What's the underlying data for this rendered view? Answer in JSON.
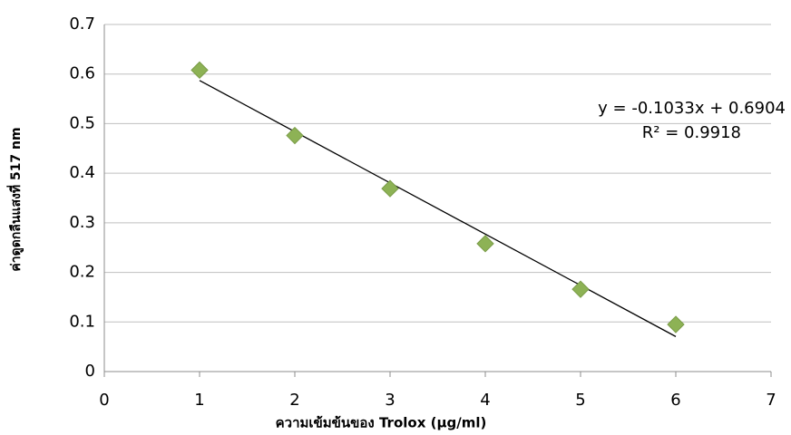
{
  "chart_data": {
    "type": "scatter",
    "x_label": "ความเข้มข้นของ Trolox (µg/ml)",
    "y_label": "ค่าดูดกลืนแสงที่ 517 nm",
    "x": [
      1,
      2,
      3,
      4,
      5,
      6
    ],
    "values": [
      0.608,
      0.476,
      0.369,
      0.258,
      0.166,
      0.095
    ],
    "color": "#8db255",
    "xlim": [
      0,
      7
    ],
    "xticks": [
      0,
      1,
      2,
      3,
      4,
      5,
      6,
      7
    ],
    "ylim": [
      0,
      0.7
    ],
    "yticks": [
      0,
      0.1,
      0.2,
      0.3,
      0.4,
      0.5,
      0.6,
      0.7
    ],
    "grid": true,
    "trendline": {
      "slope": -0.1033,
      "intercept": 0.6904,
      "equation": "y = -0.1033x + 0.6904",
      "r2": "R² = 0.9918"
    }
  }
}
